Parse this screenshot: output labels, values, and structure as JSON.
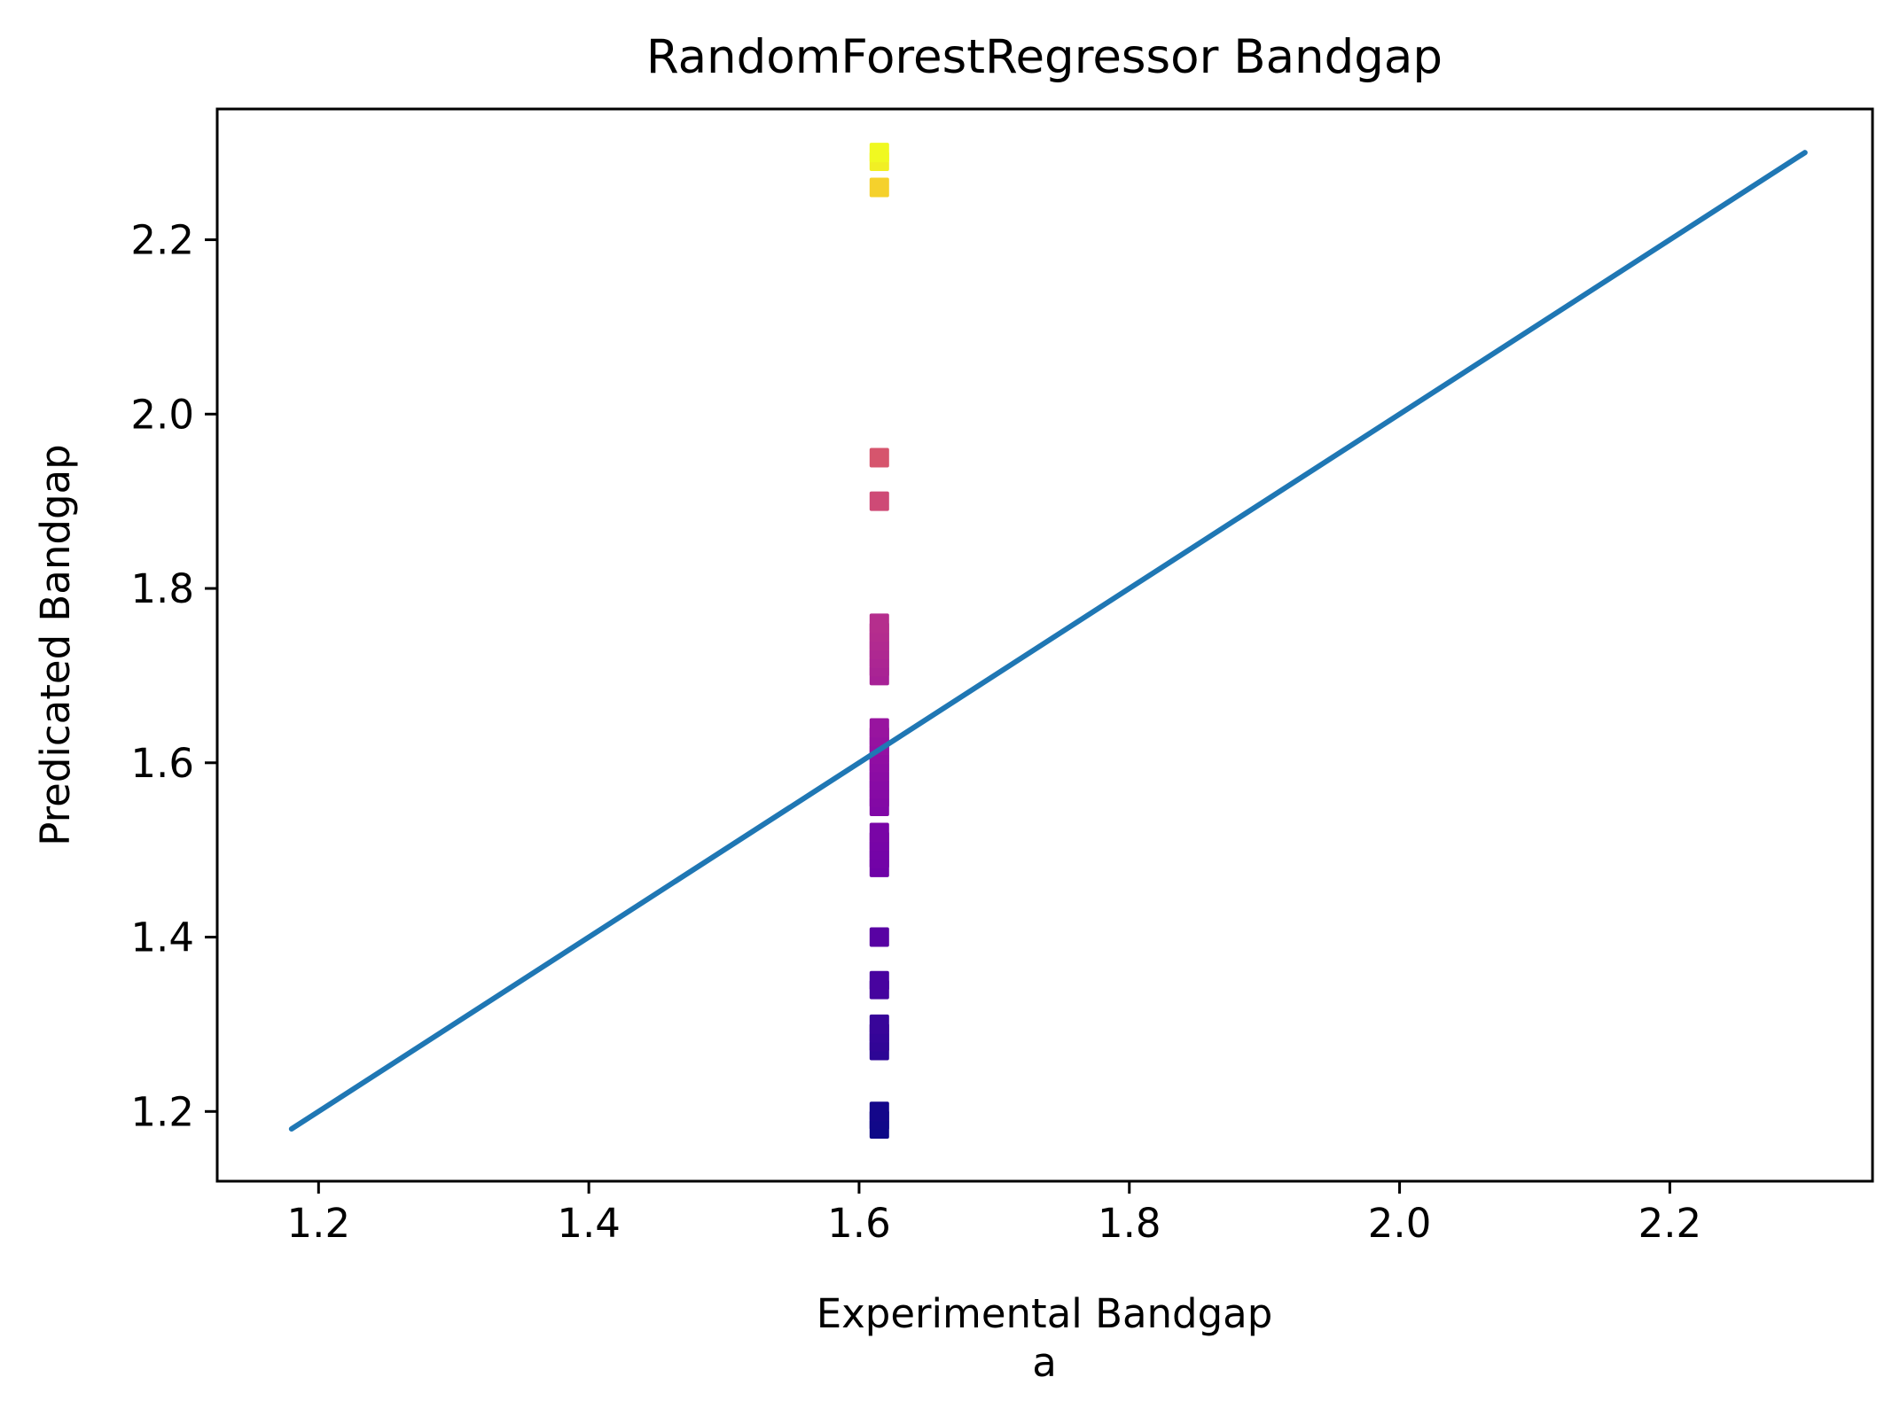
{
  "chart_data": {
    "type": "scatter",
    "title": "RandomForestRegressor Bandgap",
    "xlabel": "Experimental Bandgap",
    "sublabel": "a",
    "ylabel": "Predicated Bandgap",
    "xlim": [
      1.125,
      2.35
    ],
    "ylim": [
      1.12,
      2.35
    ],
    "xticks": [
      1.2,
      1.4,
      1.6,
      1.8,
      2.0,
      2.2
    ],
    "xtick_labels": [
      "1.2",
      "1.4",
      "1.6",
      "1.8",
      "2.0",
      "2.2"
    ],
    "yticks": [
      1.2,
      1.4,
      1.6,
      1.8,
      2.0,
      2.2
    ],
    "ytick_labels": [
      "1.2",
      "1.4",
      "1.6",
      "1.8",
      "2.0",
      "2.2"
    ],
    "grid": false,
    "colormap": "plasma",
    "reference_line": {
      "x": [
        1.18,
        2.3
      ],
      "y": [
        1.18,
        2.3
      ],
      "color": "#1f77b4"
    },
    "points": [
      {
        "x": 1.615,
        "y": 1.18
      },
      {
        "x": 1.615,
        "y": 1.19
      },
      {
        "x": 1.615,
        "y": 1.2
      },
      {
        "x": 1.615,
        "y": 1.27
      },
      {
        "x": 1.615,
        "y": 1.28
      },
      {
        "x": 1.615,
        "y": 1.29
      },
      {
        "x": 1.615,
        "y": 1.3
      },
      {
        "x": 1.615,
        "y": 1.34
      },
      {
        "x": 1.615,
        "y": 1.35
      },
      {
        "x": 1.615,
        "y": 1.4
      },
      {
        "x": 1.615,
        "y": 1.48
      },
      {
        "x": 1.615,
        "y": 1.49
      },
      {
        "x": 1.615,
        "y": 1.5
      },
      {
        "x": 1.615,
        "y": 1.51
      },
      {
        "x": 1.615,
        "y": 1.52
      },
      {
        "x": 1.615,
        "y": 1.55
      },
      {
        "x": 1.615,
        "y": 1.56
      },
      {
        "x": 1.615,
        "y": 1.57
      },
      {
        "x": 1.615,
        "y": 1.58
      },
      {
        "x": 1.615,
        "y": 1.59
      },
      {
        "x": 1.615,
        "y": 1.6
      },
      {
        "x": 1.615,
        "y": 1.61
      },
      {
        "x": 1.615,
        "y": 1.62
      },
      {
        "x": 1.615,
        "y": 1.63
      },
      {
        "x": 1.615,
        "y": 1.64
      },
      {
        "x": 1.615,
        "y": 1.7
      },
      {
        "x": 1.615,
        "y": 1.71
      },
      {
        "x": 1.615,
        "y": 1.72
      },
      {
        "x": 1.615,
        "y": 1.73
      },
      {
        "x": 1.615,
        "y": 1.74
      },
      {
        "x": 1.615,
        "y": 1.75
      },
      {
        "x": 1.615,
        "y": 1.76
      },
      {
        "x": 1.615,
        "y": 1.9
      },
      {
        "x": 1.615,
        "y": 1.95
      },
      {
        "x": 1.615,
        "y": 2.26
      },
      {
        "x": 1.615,
        "y": 2.29
      },
      {
        "x": 1.615,
        "y": 2.3
      }
    ]
  }
}
